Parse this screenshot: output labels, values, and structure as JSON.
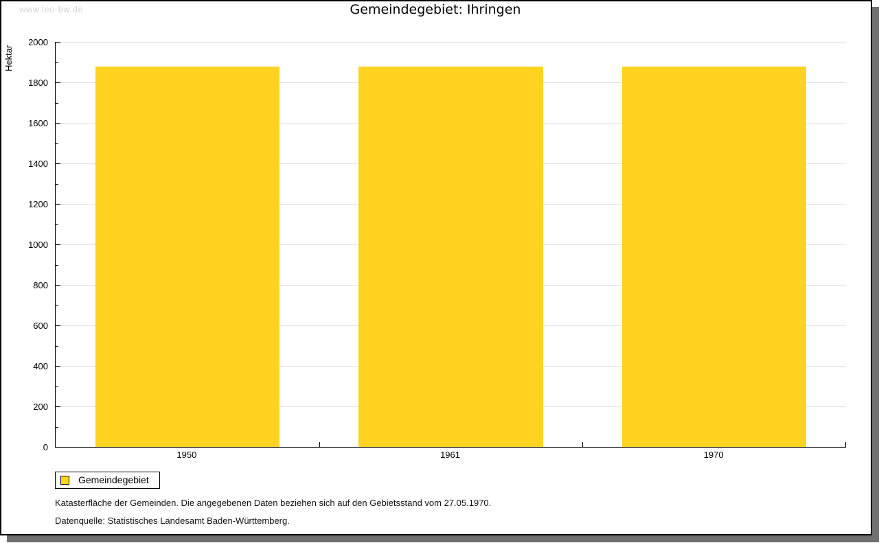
{
  "page": {
    "watermark": "www.leo-bw.de",
    "title": "Gemeindegebiet: Ihringen"
  },
  "chart_data": {
    "type": "bar",
    "title": "Gemeindegebiet: Ihringen",
    "categories": [
      "1950",
      "1961",
      "1970"
    ],
    "series": [
      {
        "name": "Gemeindegebiet",
        "values": [
          1878,
          1878,
          1878
        ]
      }
    ],
    "xlabel": "",
    "ylabel": "Hektar",
    "ylim": [
      0,
      2000
    ],
    "ytick_major": 200,
    "ytick_minor": 100,
    "grid": true,
    "bar_color": "#ffd320",
    "legend_position": "bottom-left"
  },
  "legend": {
    "label": "Gemeindegebiet",
    "swatch_color": "#ffd320"
  },
  "footnotes": {
    "line1": "Katasterfläche der Gemeinden. Die angegebenen Daten beziehen sich auf den Gebietsstand vom 27.05.1970.",
    "line2": "Datenquelle: Statistisches Landesamt Baden-Württemberg."
  },
  "colors": {
    "bar": "#ffd320",
    "grid": "#e0e0e0",
    "axis": "#000000",
    "watermark": "#d5d5d5",
    "frame_border": "#000000",
    "frame_shadow": "#6f6f6f"
  }
}
